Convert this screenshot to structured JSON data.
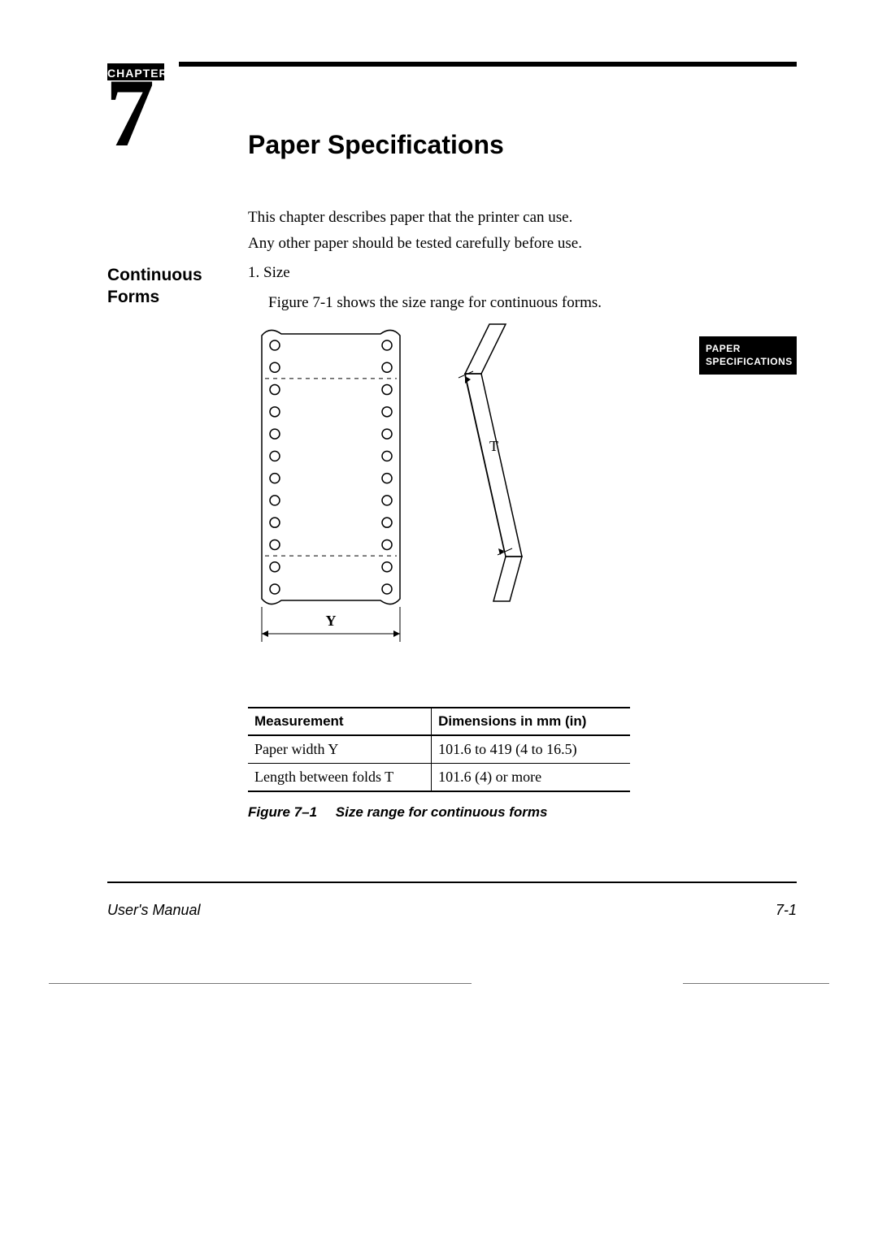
{
  "chapter": {
    "label": "CHAPTER",
    "number": "7"
  },
  "title": "Paper Specifications",
  "intro": {
    "line1": "This chapter describes paper that the printer can use.",
    "line2": "Any other paper should be tested carefully before use."
  },
  "section": {
    "label": "Continuous Forms",
    "item_num": "1.  Size",
    "item_text": "Figure 7-1 shows the size range for continuous forms."
  },
  "side_tab": {
    "line1": "PAPER",
    "line2": "SPECIFICATIONS"
  },
  "figure": {
    "label_T": "T",
    "label_Y": "Y",
    "holes_per_side": 12,
    "form_width": 170,
    "form_height": 340,
    "hole_radius": 6,
    "stroke_color": "#000000",
    "stroke_width": 1.5
  },
  "table": {
    "columns": [
      "Measurement",
      "Dimensions in mm (in)"
    ],
    "rows": [
      [
        "Paper width Y",
        "101.6 to 419 (4 to 16.5)"
      ],
      [
        "Length between folds T",
        "101.6 (4) or more"
      ]
    ]
  },
  "caption": {
    "label": "Figure 7–1",
    "text": "Size range for continuous forms"
  },
  "footer": {
    "left": "User's Manual",
    "right": "7-1"
  },
  "colors": {
    "text": "#000000",
    "bg": "#ffffff"
  }
}
